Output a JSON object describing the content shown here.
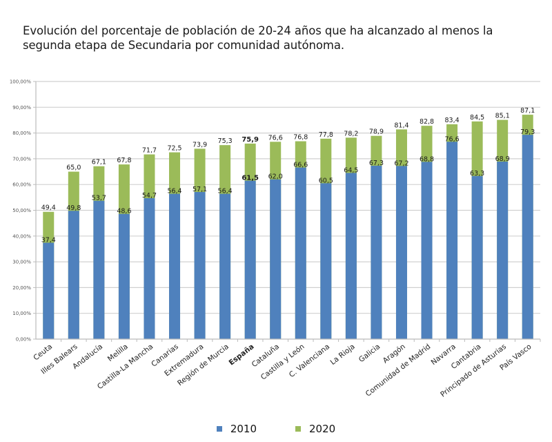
{
  "chart_data": {
    "type": "bar",
    "stacking": "overlay",
    "title": "Evolución del porcentaje de población de 20-24 años que ha alcanzado al menos la segunda etapa de Secundaria por comunidad autónoma.",
    "xlabel": "",
    "ylabel": "",
    "ylim": [
      0,
      100
    ],
    "yticks": [
      0,
      10,
      20,
      30,
      40,
      50,
      60,
      70,
      80,
      90,
      100
    ],
    "ytick_labels": [
      "0,00%",
      "10,00%",
      "20,00%",
      "30,00%",
      "40,00%",
      "50,00%",
      "60,00%",
      "70,00%",
      "80,00%",
      "90,00%",
      "100,00%"
    ],
    "grid": true,
    "legend_position": "bottom",
    "categories": [
      "Ceuta",
      "Illes Balears",
      "Andalucía",
      "Melilla",
      "Castilla-La Mancha",
      "Canarias",
      "Extremadura",
      "Región de Murcia",
      "España",
      "Cataluña",
      "Castilla y León",
      "C. Valenciana",
      "La Rioja",
      "Galicia",
      "Aragón",
      "Comunidad de Madrid",
      "Navarra",
      "Cantabria",
      "Principado de Asturias",
      "País Vasco"
    ],
    "highlight_category": "España",
    "series": [
      {
        "name": "2010",
        "color": "#4f81bd",
        "values": [
          37.4,
          49.8,
          53.7,
          48.6,
          54.7,
          56.4,
          57.1,
          56.4,
          61.5,
          62.0,
          66.6,
          60.5,
          64.5,
          67.3,
          67.2,
          68.8,
          76.6,
          63.3,
          68.9,
          79.3
        ],
        "labels": [
          "37,4",
          "49,8",
          "53,7",
          "48,6",
          "54,7",
          "56,4",
          "57,1",
          "56,4",
          "61,5",
          "62,0",
          "66,6",
          "60,5",
          "64,5",
          "67,3",
          "67,2",
          "68,8",
          "76,6",
          "63,3",
          "68,9",
          "79,3"
        ]
      },
      {
        "name": "2020",
        "color": "#9bbb59",
        "values": [
          49.4,
          65.0,
          67.1,
          67.8,
          71.7,
          72.5,
          73.9,
          75.3,
          75.9,
          76.6,
          76.8,
          77.8,
          78.2,
          78.9,
          81.4,
          82.8,
          83.4,
          84.5,
          85.1,
          87.1
        ],
        "labels": [
          "49,4",
          "65,0",
          "67,1",
          "67,8",
          "71,7",
          "72,5",
          "73,9",
          "75,3",
          "75,9",
          "76,6",
          "76,8",
          "77,8",
          "78,2",
          "78,9",
          "81,4",
          "82,8",
          "83,4",
          "84,5",
          "85,1",
          "87,1"
        ]
      }
    ]
  },
  "legend": {
    "items": [
      {
        "label": "2010",
        "color": "#4f81bd"
      },
      {
        "label": "2020",
        "color": "#9bbb59"
      }
    ]
  }
}
